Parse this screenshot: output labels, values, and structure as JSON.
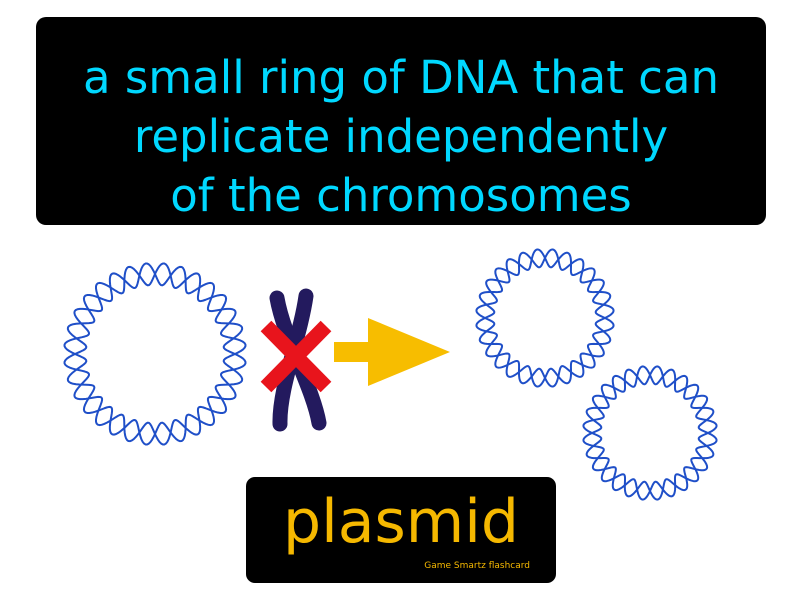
{
  "definition": {
    "line1": "a small ring of DNA that can",
    "line2": "replicate independently",
    "line3": "of the chromosomes"
  },
  "term": {
    "word": "plasmid",
    "credit": "Game Smartz flashcard"
  },
  "colors": {
    "definition_text": "#00d8ff",
    "term_text": "#f5b800",
    "dna_strand": "#1f4fc8",
    "chromosome": "#231a5e",
    "cross_mark": "#e8141c",
    "arrow": "#f7bd00"
  },
  "icons": {
    "plasmid_ring": "wavy-dna-ring-icon",
    "chromosome": "chromosome-icon",
    "cross": "red-x-icon",
    "arrow": "right-arrow-icon"
  }
}
